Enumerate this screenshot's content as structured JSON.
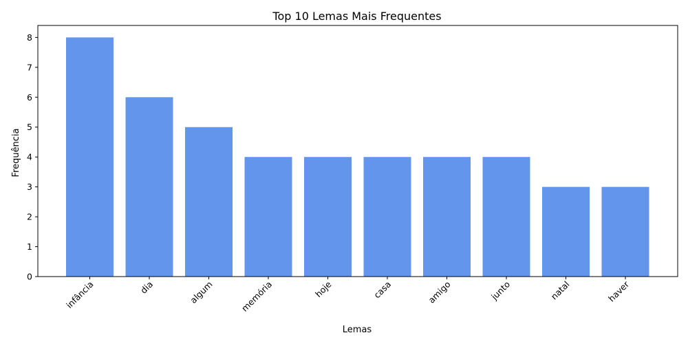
{
  "chart_data": {
    "type": "bar",
    "title": "Top 10 Lemas Mais Frequentes",
    "xlabel": "Lemas",
    "ylabel": "Frequência",
    "categories": [
      "infância",
      "dia",
      "algum",
      "memória",
      "hoje",
      "casa",
      "amigo",
      "junto",
      "natal",
      "haver"
    ],
    "values": [
      8,
      6,
      5,
      4,
      4,
      4,
      4,
      4,
      3,
      3
    ],
    "ylim": [
      0,
      8.4
    ],
    "yticks": [
      0,
      1,
      2,
      3,
      4,
      5,
      6,
      7,
      8
    ],
    "bar_color": "#6495ED",
    "grid": false,
    "xtick_rotation": "45 degrees"
  }
}
